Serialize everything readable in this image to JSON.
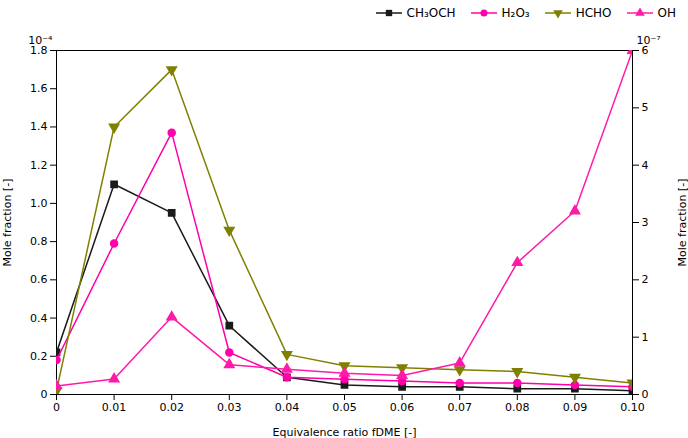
{
  "chart_data": {
    "type": "line",
    "xlabel": "Equivalence ratio fDME [-]",
    "ylabel": "Mole fraction [-]",
    "y2label": "Mole fraction [-]",
    "x": [
      0,
      0.01,
      0.02,
      0.03,
      0.04,
      0.05,
      0.06,
      0.07,
      0.08,
      0.09,
      0.1
    ],
    "series": [
      {
        "name": "CH₃OCH",
        "color": "#1a1a1a",
        "marker": "square",
        "values": [
          0.22,
          1.1,
          0.95,
          0.36,
          0.09,
          0.05,
          0.04,
          0.04,
          0.03,
          0.03,
          0.02
        ]
      },
      {
        "name": "H₂O₃",
        "color": "#ff00aa",
        "marker": "circle",
        "values": [
          0.18,
          0.79,
          1.37,
          0.22,
          0.09,
          0.08,
          0.07,
          0.06,
          0.06,
          0.05,
          0.04
        ]
      },
      {
        "name": "HCHO",
        "color": "#808000",
        "marker": "triangle-down",
        "values": [
          0.02,
          1.4,
          1.7,
          0.86,
          0.21,
          0.15,
          0.14,
          0.13,
          0.12,
          0.09,
          0.06
        ]
      },
      {
        "name": "OH",
        "color": "#ff1aaa",
        "marker": "triangle-up",
        "axis": "y2",
        "values": [
          0.15,
          0.27,
          1.35,
          0.52,
          0.44,
          0.37,
          0.33,
          0.55,
          2.3,
          3.2,
          6.0
        ]
      }
    ],
    "xlim": [
      0,
      0.1
    ],
    "xticks": [
      0,
      0.01,
      0.02,
      0.03,
      0.04,
      0.05,
      0.06,
      0.07,
      0.08,
      0.09,
      {
        "value": 0.1,
        "label": "0.10"
      }
    ],
    "ylim": [
      0,
      1.8
    ],
    "yticks": [
      0,
      0.2,
      0.4,
      0.6,
      0.8,
      {
        "value": 1.0,
        "label": "1.0"
      },
      1.2,
      1.4,
      1.6,
      1.8
    ],
    "y2lim": [
      0,
      6
    ],
    "y2ticks": [
      0,
      1,
      2,
      3,
      4,
      5,
      6
    ],
    "legend": "upper right",
    "annotations": [
      {
        "text": "10⁻⁴",
        "axis": "y"
      },
      {
        "text": "10⁻⁷",
        "axis": "y2"
      }
    ]
  }
}
